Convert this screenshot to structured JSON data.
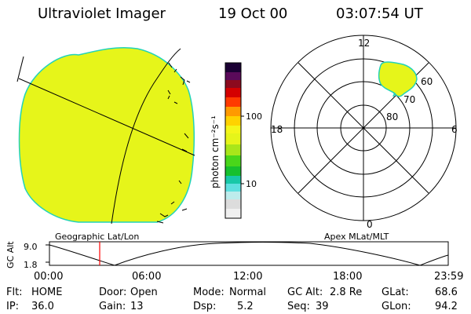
{
  "header": {
    "instrument": "Ultraviolet Imager",
    "date": "19 Oct 00",
    "time": "03:07:54 UT"
  },
  "colorbar": {
    "unit_label": "photon cm⁻²s⁻¹",
    "ticks": [
      "100",
      "10"
    ]
  },
  "polar_plot": {
    "mlt_labels": {
      "top": "12",
      "right": "6",
      "bottom": "0",
      "left": "18"
    },
    "lat_labels": [
      "60",
      "70",
      "80"
    ]
  },
  "panel_captions": {
    "geo": "Geographic Lat/Lon",
    "apex": "Apex MLat/MLT"
  },
  "altitude_plot": {
    "axis_label": "GC Alt",
    "y_ticks": [
      "9.0",
      "1.8"
    ],
    "time_ticks": [
      "00:00",
      "06:00",
      "12:00",
      "18:00",
      "23:59"
    ]
  },
  "status": {
    "flt_label": "Flt:",
    "flt_value": "HOME",
    "ip_label": "IP:",
    "ip_value": "36.0",
    "door_label": "Door:",
    "door_value": "Open",
    "gain_label": "Gain:",
    "gain_value": "13",
    "mode_label": "Mode:",
    "mode_value": "Normal",
    "dsp_label": "Dsp:",
    "dsp_value": "5.2",
    "gcalt_label": "GC Alt:",
    "gcalt_value": "2.8 Re",
    "seq_label": "Seq:",
    "seq_value": "39",
    "glat_label": "GLat:",
    "glat_value": "68.6",
    "glon_label": "GLon:",
    "glon_value": "94.2"
  },
  "colors": {
    "fill": "#e6f51a",
    "edge": "#22d3b8",
    "marker": "#ff0000"
  }
}
